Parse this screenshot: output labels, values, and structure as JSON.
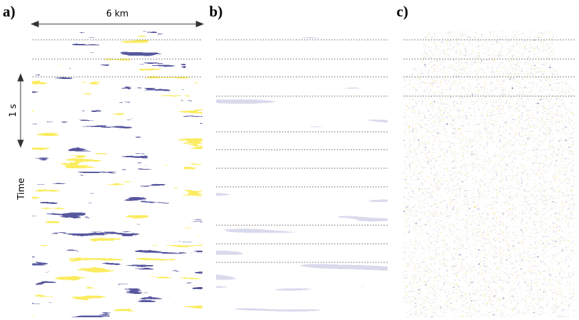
{
  "panels": [
    {
      "label": "a)"
    },
    {
      "label": "b)"
    },
    {
      "label": "c)"
    }
  ],
  "scale_bar": {
    "horizontal": "6 km",
    "vertical": "1 s"
  },
  "axis_label": "Time"
}
